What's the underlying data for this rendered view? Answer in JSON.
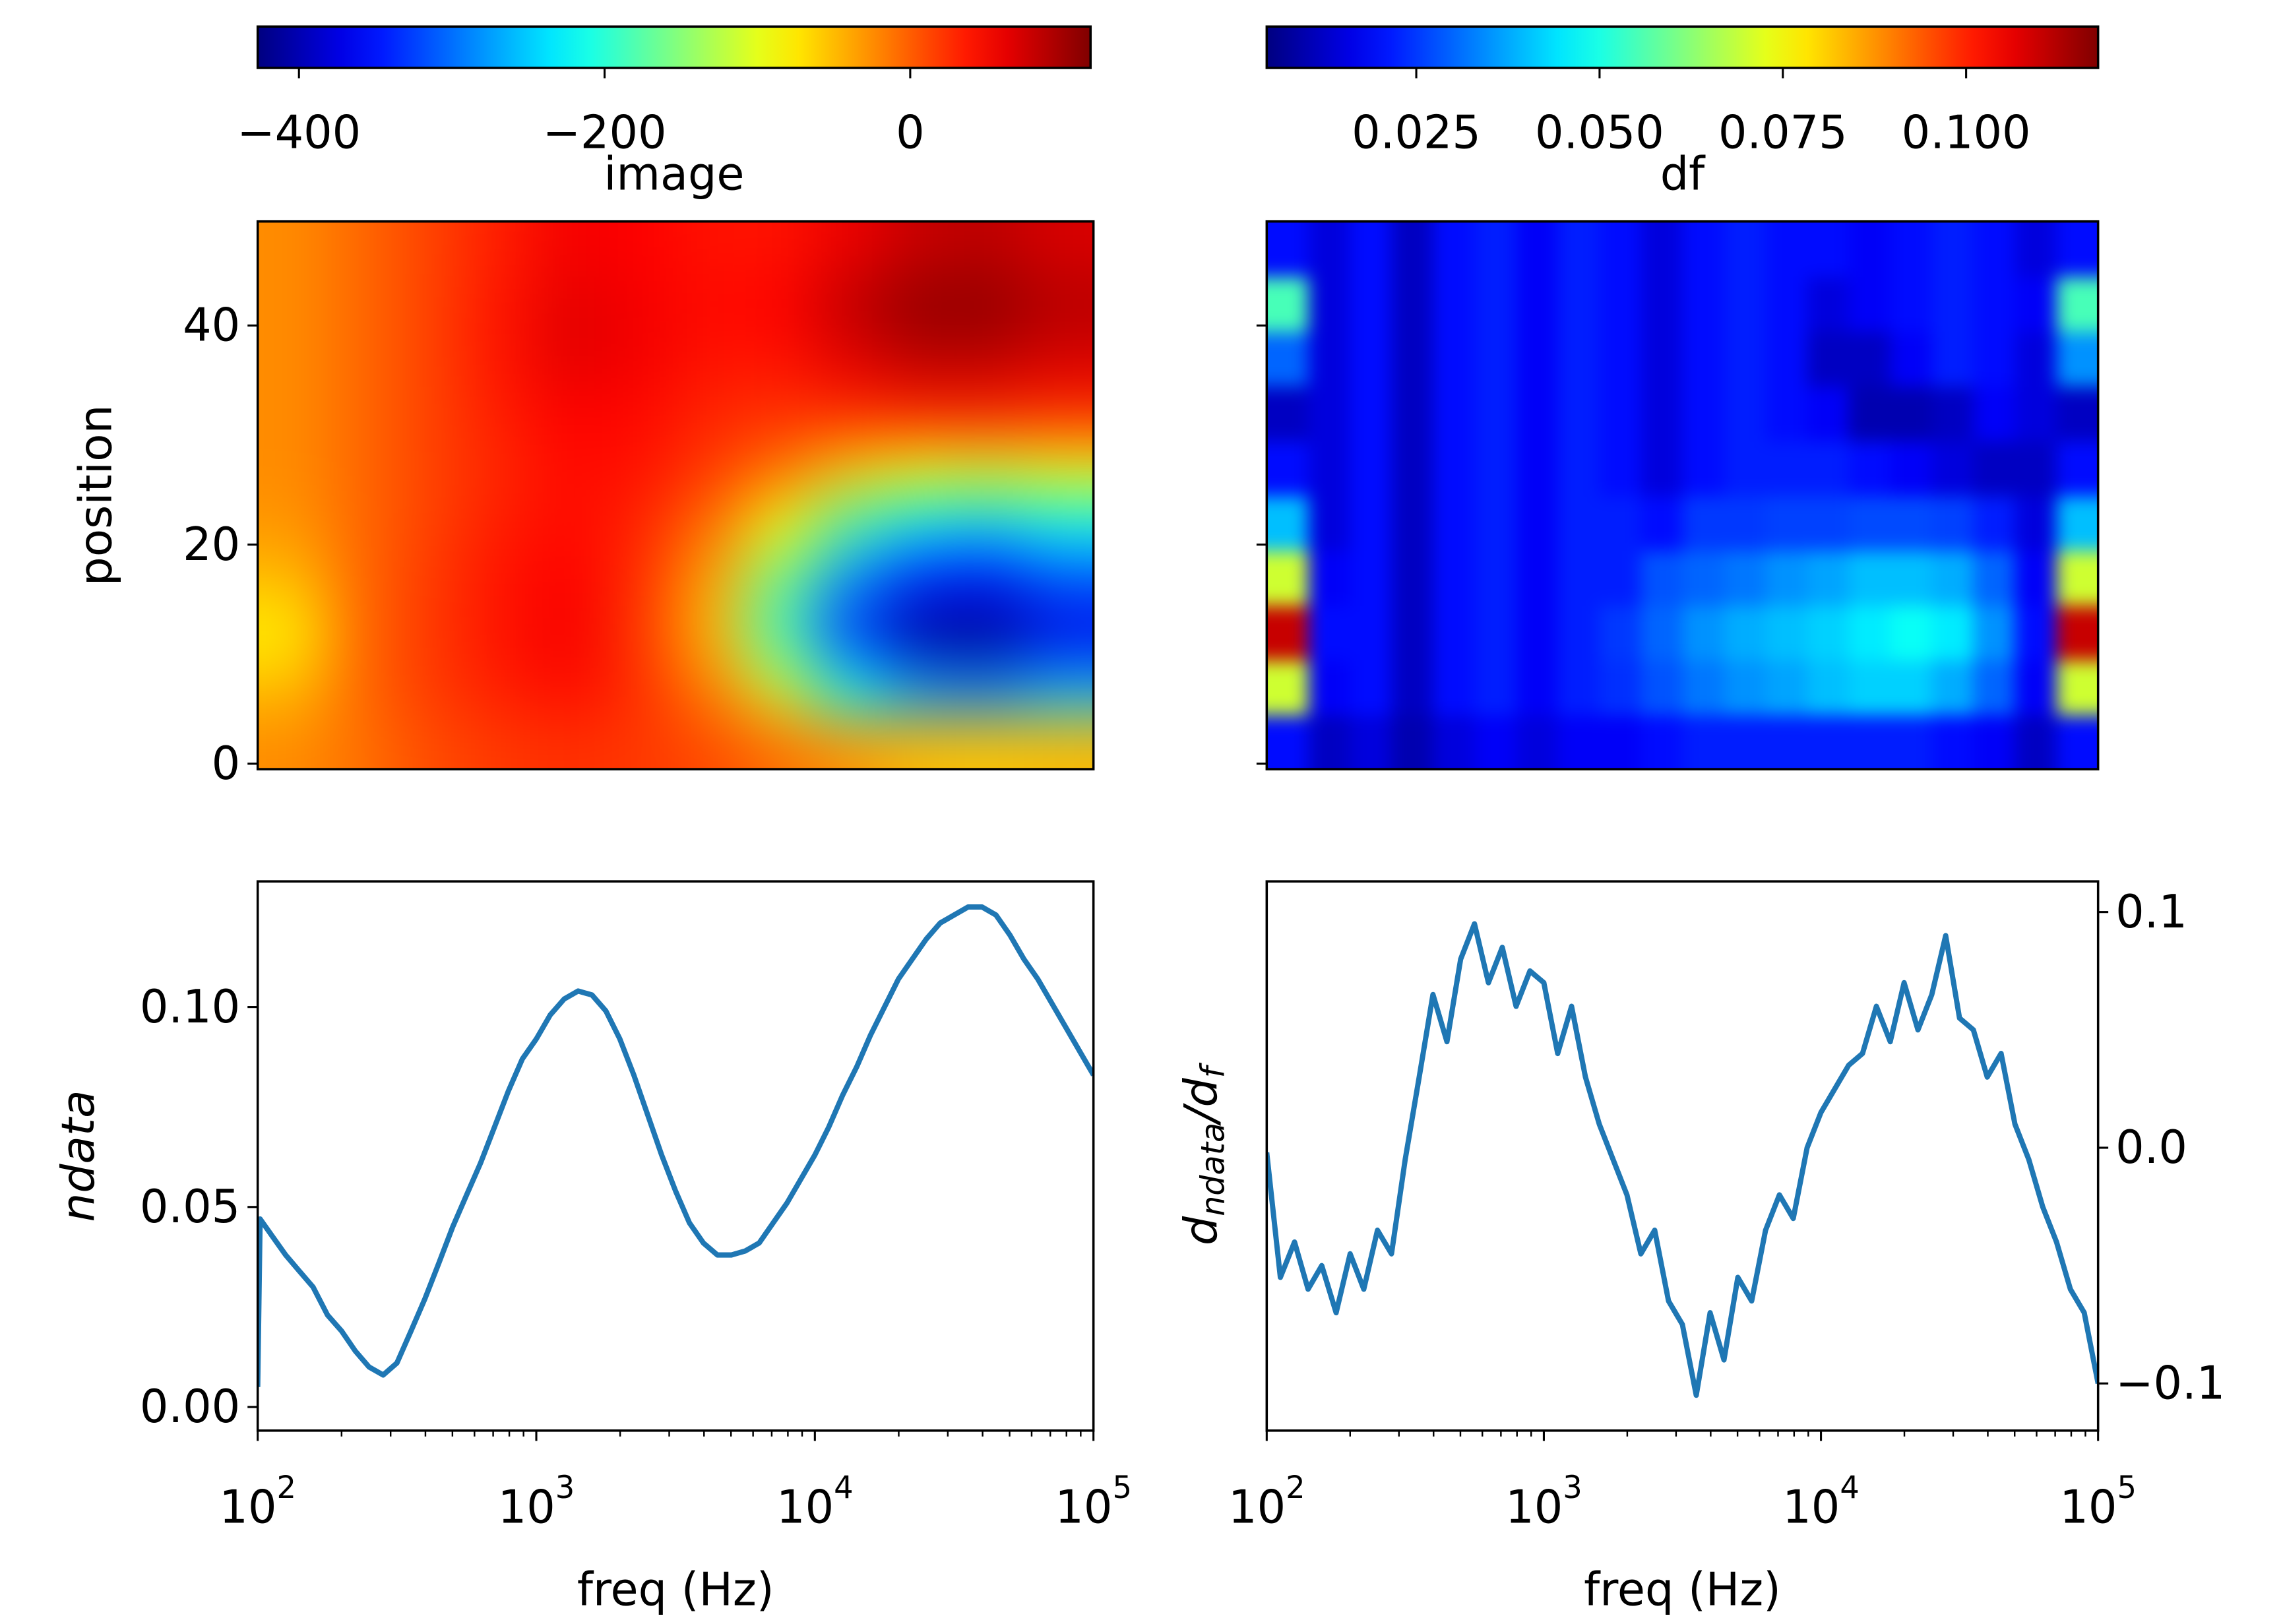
{
  "chart_data": [
    {
      "type": "heatmap",
      "colormap": "jet",
      "colorbar_label": "image",
      "clim": [
        -427,
        118
      ],
      "cticks": [
        {
          "value": -400,
          "label": "−400"
        },
        {
          "value": -200,
          "label": "−200"
        },
        0
      ],
      "ylabel": "position",
      "ylim": [
        -0.5,
        49.5
      ],
      "yticks": [
        0,
        20,
        40
      ],
      "z": [
        [
          -25,
          -10,
          10,
          20,
          25,
          20,
          10,
          -10,
          -30,
          -50,
          -55,
          -50
        ],
        [
          -50,
          -5,
          20,
          35,
          45,
          25,
          -20,
          -110,
          -220,
          -280,
          -290,
          -260
        ],
        [
          -80,
          -5,
          20,
          40,
          55,
          20,
          -50,
          -190,
          -330,
          -410,
          -420,
          -370
        ],
        [
          -50,
          -5,
          20,
          40,
          50,
          25,
          -40,
          -160,
          -280,
          -340,
          -350,
          -310
        ],
        [
          -30,
          -5,
          15,
          35,
          45,
          30,
          -10,
          -90,
          -180,
          -230,
          -240,
          -220
        ],
        [
          -25,
          -5,
          15,
          30,
          45,
          40,
          20,
          -10,
          -60,
          -90,
          -100,
          -90
        ],
        [
          -25,
          -5,
          15,
          35,
          50,
          45,
          30,
          25,
          30,
          35,
          35,
          30
        ],
        [
          -25,
          -5,
          15,
          40,
          65,
          55,
          40,
          40,
          65,
          85,
          85,
          70
        ],
        [
          -25,
          -5,
          15,
          40,
          65,
          55,
          45,
          50,
          85,
          110,
          110,
          90
        ],
        [
          -25,
          -5,
          15,
          35,
          55,
          50,
          40,
          40,
          60,
          80,
          85,
          70
        ]
      ]
    },
    {
      "type": "heatmap",
      "colormap": "jet",
      "colorbar_label": "df",
      "clim": [
        0.0046,
        0.118
      ],
      "cticks": [
        0.025,
        {
          "value": 0.05,
          "label": "0.050"
        },
        0.075,
        {
          "value": 0.1,
          "label": "0.100"
        }
      ],
      "ylim": [
        -0.5,
        49.5
      ],
      "yticks": [
        0,
        20,
        40
      ],
      "ytick_labels": false,
      "z": [
        [
          0.02,
          0.012,
          0.015,
          0.01,
          0.015,
          0.018,
          0.015,
          0.018,
          0.018,
          0.02,
          0.022,
          0.022,
          0.022,
          0.022,
          0.022,
          0.022,
          0.02,
          0.018,
          0.012,
          0.02
        ],
        [
          0.07,
          0.018,
          0.02,
          0.012,
          0.02,
          0.022,
          0.018,
          0.022,
          0.024,
          0.028,
          0.032,
          0.035,
          0.037,
          0.04,
          0.042,
          0.042,
          0.038,
          0.03,
          0.018,
          0.07
        ],
        [
          0.11,
          0.02,
          0.02,
          0.012,
          0.02,
          0.022,
          0.018,
          0.022,
          0.025,
          0.03,
          0.035,
          0.038,
          0.04,
          0.042,
          0.045,
          0.048,
          0.045,
          0.035,
          0.02,
          0.11
        ],
        [
          0.07,
          0.018,
          0.02,
          0.012,
          0.02,
          0.022,
          0.018,
          0.022,
          0.022,
          0.028,
          0.03,
          0.032,
          0.035,
          0.037,
          0.04,
          0.04,
          0.038,
          0.03,
          0.018,
          0.07
        ],
        [
          0.04,
          0.015,
          0.02,
          0.012,
          0.02,
          0.022,
          0.018,
          0.022,
          0.022,
          0.02,
          0.025,
          0.025,
          0.026,
          0.026,
          0.027,
          0.027,
          0.026,
          0.022,
          0.015,
          0.04
        ],
        [
          0.02,
          0.015,
          0.02,
          0.012,
          0.02,
          0.022,
          0.018,
          0.022,
          0.02,
          0.015,
          0.02,
          0.022,
          0.022,
          0.022,
          0.02,
          0.018,
          0.015,
          0.012,
          0.012,
          0.02
        ],
        [
          0.012,
          0.015,
          0.02,
          0.012,
          0.02,
          0.022,
          0.018,
          0.022,
          0.02,
          0.015,
          0.02,
          0.022,
          0.02,
          0.018,
          0.01,
          0.01,
          0.012,
          0.018,
          0.015,
          0.012
        ],
        [
          0.03,
          0.015,
          0.02,
          0.012,
          0.02,
          0.022,
          0.018,
          0.022,
          0.02,
          0.015,
          0.02,
          0.022,
          0.02,
          0.012,
          0.012,
          0.018,
          0.022,
          0.02,
          0.015,
          0.035
        ],
        [
          0.055,
          0.015,
          0.02,
          0.012,
          0.02,
          0.022,
          0.018,
          0.022,
          0.02,
          0.015,
          0.02,
          0.022,
          0.02,
          0.015,
          0.018,
          0.02,
          0.022,
          0.02,
          0.018,
          0.055
        ],
        [
          0.02,
          0.015,
          0.02,
          0.012,
          0.02,
          0.022,
          0.018,
          0.022,
          0.02,
          0.015,
          0.02,
          0.022,
          0.02,
          0.02,
          0.018,
          0.02,
          0.022,
          0.02,
          0.015,
          0.02
        ]
      ]
    },
    {
      "type": "line",
      "color": "#1f77b4",
      "xscale": "log",
      "xlabel": "freq (Hz)",
      "ylabel": "ndata",
      "xlim": [
        100,
        100000
      ],
      "xticks": [
        {
          "value": 100,
          "label": "10",
          "exponent": "2"
        },
        {
          "value": 1000,
          "label": "10",
          "exponent": "3"
        },
        {
          "value": 10000,
          "label": "10",
          "exponent": "4"
        },
        {
          "value": 100000,
          "label": "10",
          "exponent": "5"
        }
      ],
      "xminorticks": [
        200,
        300,
        400,
        500,
        600,
        700,
        800,
        900,
        2000,
        3000,
        4000,
        5000,
        6000,
        7000,
        8000,
        9000,
        20000,
        30000,
        40000,
        50000,
        60000,
        70000,
        80000,
        90000
      ],
      "ylim": [
        -0.0059,
        0.1314
      ],
      "yticks": [
        {
          "value": 0,
          "label": "0.00"
        },
        0.05,
        {
          "value": 0.1,
          "label": "0.10"
        }
      ],
      "x": [
        100,
        102,
        112,
        126,
        141,
        158,
        178,
        200,
        224,
        251,
        282,
        316,
        355,
        398,
        447,
        501,
        562,
        631,
        708,
        794,
        891,
        1000,
        1122,
        1259,
        1413,
        1585,
        1778,
        1995,
        2239,
        2512,
        2818,
        3162,
        3548,
        3981,
        4467,
        5012,
        5623,
        6310,
        7079,
        7943,
        8913,
        10000,
        11220,
        12589,
        14125,
        15849,
        17783,
        19953,
        22387,
        25119,
        28184,
        31623,
        35481,
        39811,
        44668,
        50119,
        56234,
        63096,
        70795,
        79433,
        89125,
        100000
      ],
      "values": [
        0.005,
        0.047,
        0.043,
        0.038,
        0.034,
        0.03,
        0.023,
        0.019,
        0.014,
        0.01,
        0.008,
        0.011,
        0.019,
        0.027,
        0.036,
        0.045,
        0.053,
        0.061,
        0.07,
        0.079,
        0.087,
        0.092,
        0.098,
        0.102,
        0.104,
        0.103,
        0.099,
        0.092,
        0.083,
        0.073,
        0.063,
        0.054,
        0.046,
        0.041,
        0.038,
        0.038,
        0.039,
        0.041,
        0.046,
        0.051,
        0.057,
        0.063,
        0.07,
        0.078,
        0.085,
        0.093,
        0.1,
        0.107,
        0.112,
        0.117,
        0.121,
        0.123,
        0.125,
        0.125,
        0.123,
        0.118,
        0.112,
        0.107,
        0.101,
        0.095,
        0.089,
        0.083
      ]
    },
    {
      "type": "line",
      "color": "#1f77b4",
      "xscale": "log",
      "xlabel": "freq (Hz)",
      "yaxis_side": "right",
      "ylabel": [
        {
          "text": "d"
        },
        {
          "text": "ndata",
          "sub": true
        },
        {
          "text": "/d"
        },
        {
          "text": "f",
          "sub": true
        }
      ],
      "xlim": [
        100,
        100000
      ],
      "xticks": [
        {
          "value": 100,
          "label": "10",
          "exponent": "2"
        },
        {
          "value": 1000,
          "label": "10",
          "exponent": "3"
        },
        {
          "value": 10000,
          "label": "10",
          "exponent": "4"
        },
        {
          "value": 100000,
          "label": "10",
          "exponent": "5"
        }
      ],
      "xminorticks": [
        200,
        300,
        400,
        500,
        600,
        700,
        800,
        900,
        2000,
        3000,
        4000,
        5000,
        6000,
        7000,
        8000,
        9000,
        20000,
        30000,
        40000,
        50000,
        60000,
        70000,
        80000,
        90000
      ],
      "ylim": [
        -0.12,
        0.113
      ],
      "yticks": [
        {
          "value": -0.1,
          "label": "−0.1"
        },
        {
          "value": 0,
          "label": "0.0"
        },
        0.1
      ],
      "x": [
        100,
        112,
        126,
        141,
        158,
        178,
        200,
        224,
        251,
        282,
        316,
        355,
        398,
        447,
        501,
        562,
        631,
        708,
        794,
        891,
        1000,
        1122,
        1259,
        1413,
        1585,
        1778,
        1995,
        2239,
        2512,
        2818,
        3162,
        3548,
        3981,
        4467,
        5012,
        5623,
        6310,
        7079,
        7943,
        8913,
        10000,
        11220,
        12589,
        14125,
        15849,
        17783,
        19953,
        22387,
        25119,
        28184,
        31623,
        35481,
        39811,
        44668,
        50119,
        56234,
        63096,
        70795,
        79433,
        89125,
        100000
      ],
      "values": [
        -0.002,
        -0.055,
        -0.04,
        -0.06,
        -0.05,
        -0.07,
        -0.045,
        -0.06,
        -0.035,
        -0.045,
        -0.005,
        0.03,
        0.065,
        0.045,
        0.08,
        0.095,
        0.07,
        0.085,
        0.06,
        0.075,
        0.07,
        0.04,
        0.06,
        0.03,
        0.01,
        -0.005,
        -0.02,
        -0.045,
        -0.035,
        -0.065,
        -0.075,
        -0.105,
        -0.07,
        -0.09,
        -0.055,
        -0.065,
        -0.035,
        -0.02,
        -0.03,
        0.0,
        0.015,
        0.025,
        0.035,
        0.04,
        0.06,
        0.045,
        0.07,
        0.05,
        0.065,
        0.09,
        0.055,
        0.05,
        0.03,
        0.04,
        0.01,
        -0.005,
        -0.025,
        -0.04,
        -0.06,
        -0.07,
        -0.1
      ]
    }
  ]
}
